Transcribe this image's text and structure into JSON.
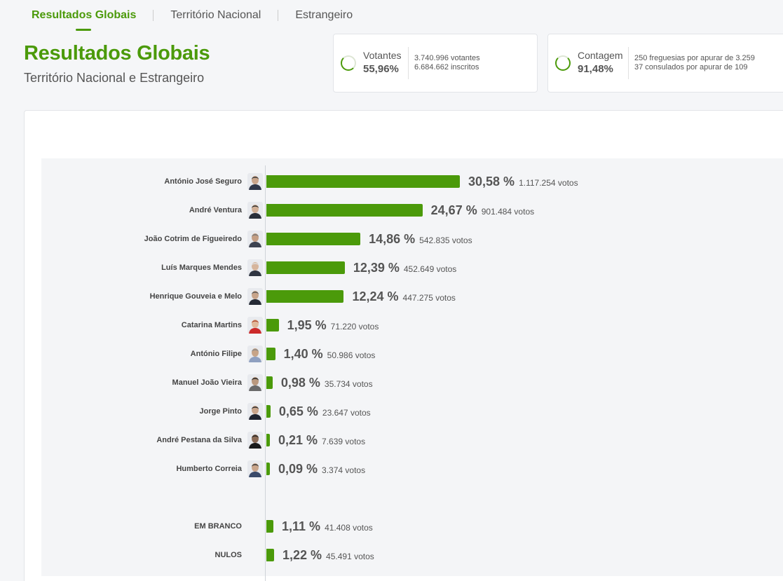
{
  "tabs": [
    {
      "label": "Resultados Globais",
      "active": true
    },
    {
      "label": "Território Nacional",
      "active": false
    },
    {
      "label": "Estrangeiro",
      "active": false
    }
  ],
  "title": "Resultados Globais",
  "subtitle": "Território Nacional e Estrangeiro",
  "votantes": {
    "label": "Votantes",
    "pct": "55,96%",
    "line1": "3.740.996 votantes",
    "line2": "6.684.662 inscritos"
  },
  "contagem": {
    "label": "Contagem",
    "pct": "91,48%",
    "line1": "250 freguesias por apurar de 3.259",
    "line2": "37 consulados por apurar de 109"
  },
  "colors": {
    "accent": "#4b9a0a"
  },
  "results": [
    {
      "name": "António José Seguro",
      "pct": "30,58 %",
      "votes": "1.117.254 votos",
      "value": 30.58
    },
    {
      "name": "André Ventura",
      "pct": "24,67 %",
      "votes": "901.484 votos",
      "value": 24.67
    },
    {
      "name": "João Cotrim de Figueiredo",
      "pct": "14,86 %",
      "votes": "542.835 votos",
      "value": 14.86
    },
    {
      "name": "Luís Marques Mendes",
      "pct": "12,39 %",
      "votes": "452.649 votos",
      "value": 12.39
    },
    {
      "name": "Henrique Gouveia e Melo",
      "pct": "12,24 %",
      "votes": "447.275 votos",
      "value": 12.24
    },
    {
      "name": "Catarina Martins",
      "pct": "1,95 %",
      "votes": "71.220 votos",
      "value": 1.95
    },
    {
      "name": "António Filipe",
      "pct": "1,40 %",
      "votes": "50.986 votos",
      "value": 1.4
    },
    {
      "name": "Manuel João Vieira",
      "pct": "0,98 %",
      "votes": "35.734 votos",
      "value": 0.98
    },
    {
      "name": "Jorge Pinto",
      "pct": "0,65 %",
      "votes": "23.647 votos",
      "value": 0.65
    },
    {
      "name": "André Pestana da Silva",
      "pct": "0,21 %",
      "votes": "7.639 votos",
      "value": 0.21
    },
    {
      "name": "Humberto Correia",
      "pct": "0,09 %",
      "votes": "3.374 votos",
      "value": 0.09
    }
  ],
  "others": [
    {
      "name": "EM BRANCO",
      "pct": "1,11 %",
      "votes": "41.408 votos",
      "value": 1.11
    },
    {
      "name": "NULOS",
      "pct": "1,22 %",
      "votes": "45.491 votos",
      "value": 1.22
    }
  ]
}
